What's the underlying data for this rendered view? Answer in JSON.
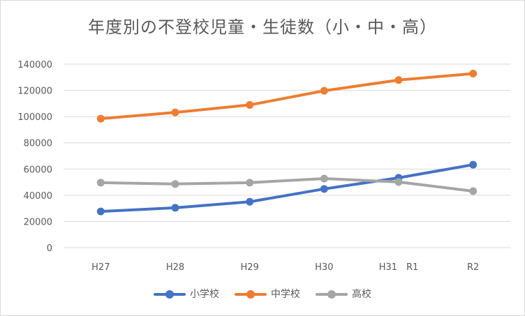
{
  "chart_data": {
    "type": "line",
    "title": "年度別の不登校児童・生徒数（小・中・高）",
    "categories": [
      "H27",
      "H28",
      "H29",
      "H30",
      "H31　R1",
      "R2"
    ],
    "ylim": [
      0,
      140000
    ],
    "yticks": [
      0,
      20000,
      40000,
      60000,
      80000,
      100000,
      120000,
      140000
    ],
    "ytick_labels": [
      "0",
      "20000",
      "40000",
      "60000",
      "80000",
      "100000",
      "120000",
      "140000"
    ],
    "grid": true,
    "legend_position": "bottom",
    "series": [
      {
        "name": "小学校",
        "color": "#4472c4",
        "values": [
          27600,
          30400,
          35000,
          44800,
          53300,
          63300
        ]
      },
      {
        "name": "中学校",
        "color": "#ed7d31",
        "values": [
          98400,
          103200,
          108900,
          119700,
          127900,
          132800
        ]
      },
      {
        "name": "高校",
        "color": "#a5a5a5",
        "values": [
          49600,
          48600,
          49600,
          52700,
          50100,
          43100
        ]
      }
    ]
  }
}
